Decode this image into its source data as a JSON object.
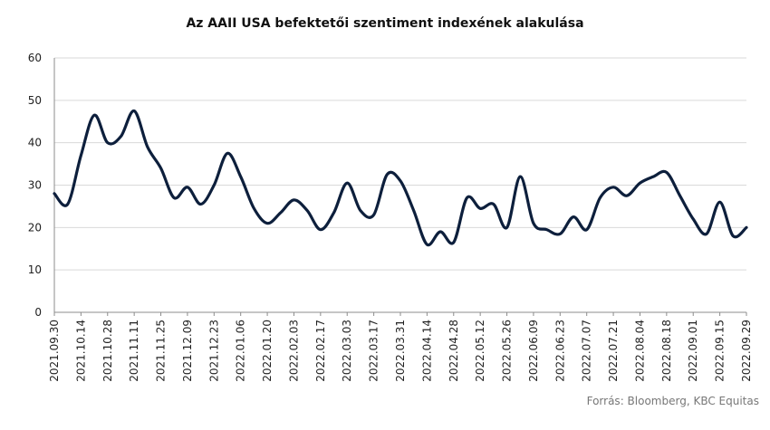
{
  "chart_data": {
    "type": "line",
    "title": "Az AAII USA befektetői szentiment indexének  alakulása",
    "xlabel": "",
    "ylabel": "",
    "ylim": [
      0,
      60
    ],
    "yticks": [
      0,
      10,
      20,
      30,
      40,
      50,
      60
    ],
    "grid": true,
    "x_tick_labels": [
      "2021.09.30",
      "2021.10.14",
      "2021.10.28",
      "2021.11.11",
      "2021.11.25",
      "2021.12.09",
      "2021.12.23",
      "2022.01.06",
      "2022.01.20",
      "2022.02.03",
      "2022.02.17",
      "2022.03.03",
      "2022.03.17",
      "2022.03.31",
      "2022.04.14",
      "2022.04.28",
      "2022.05.12",
      "2022.05.26",
      "2022.06.09",
      "2022.06.23",
      "2022.07.07",
      "2022.07.21",
      "2022.08.04",
      "2022.08.18",
      "2022.09.01",
      "2022.09.15",
      "2022.09.29"
    ],
    "x": [
      "2021.09.30",
      "2021.10.07",
      "2021.10.14",
      "2021.10.21",
      "2021.10.28",
      "2021.11.04",
      "2021.11.11",
      "2021.11.18",
      "2021.11.25",
      "2021.12.02",
      "2021.12.09",
      "2021.12.16",
      "2021.12.23",
      "2021.12.30",
      "2022.01.06",
      "2022.01.13",
      "2022.01.20",
      "2022.01.27",
      "2022.02.03",
      "2022.02.10",
      "2022.02.17",
      "2022.02.24",
      "2022.03.03",
      "2022.03.10",
      "2022.03.17",
      "2022.03.24",
      "2022.03.31",
      "2022.04.07",
      "2022.04.14",
      "2022.04.21",
      "2022.04.28",
      "2022.05.05",
      "2022.05.12",
      "2022.05.19",
      "2022.05.26",
      "2022.06.02",
      "2022.06.09",
      "2022.06.16",
      "2022.06.23",
      "2022.06.30",
      "2022.07.07",
      "2022.07.14",
      "2022.07.21",
      "2022.07.28",
      "2022.08.04",
      "2022.08.11",
      "2022.08.18",
      "2022.08.25",
      "2022.09.01",
      "2022.09.08",
      "2022.09.15",
      "2022.09.22",
      "2022.09.29"
    ],
    "series": [
      {
        "color": "#0d1f3c",
        "values": [
          28,
          25.5,
          37,
          46.5,
          40,
          41.5,
          47.5,
          39,
          34,
          27,
          29.5,
          25.5,
          30,
          37.5,
          32,
          24.5,
          21,
          23.5,
          26.5,
          24,
          19.5,
          23.5,
          30.5,
          24,
          23,
          32.5,
          31,
          24,
          16,
          19,
          16.5,
          27,
          24.5,
          25.5,
          20,
          32,
          21,
          19.5,
          18.5,
          22.5,
          19.5,
          27,
          29.5,
          27.5,
          30.5,
          32,
          33,
          27.5,
          22,
          18.5,
          26,
          18,
          20
        ]
      }
    ],
    "source": "Forrás: Bloomberg,  KBC Equitas"
  }
}
